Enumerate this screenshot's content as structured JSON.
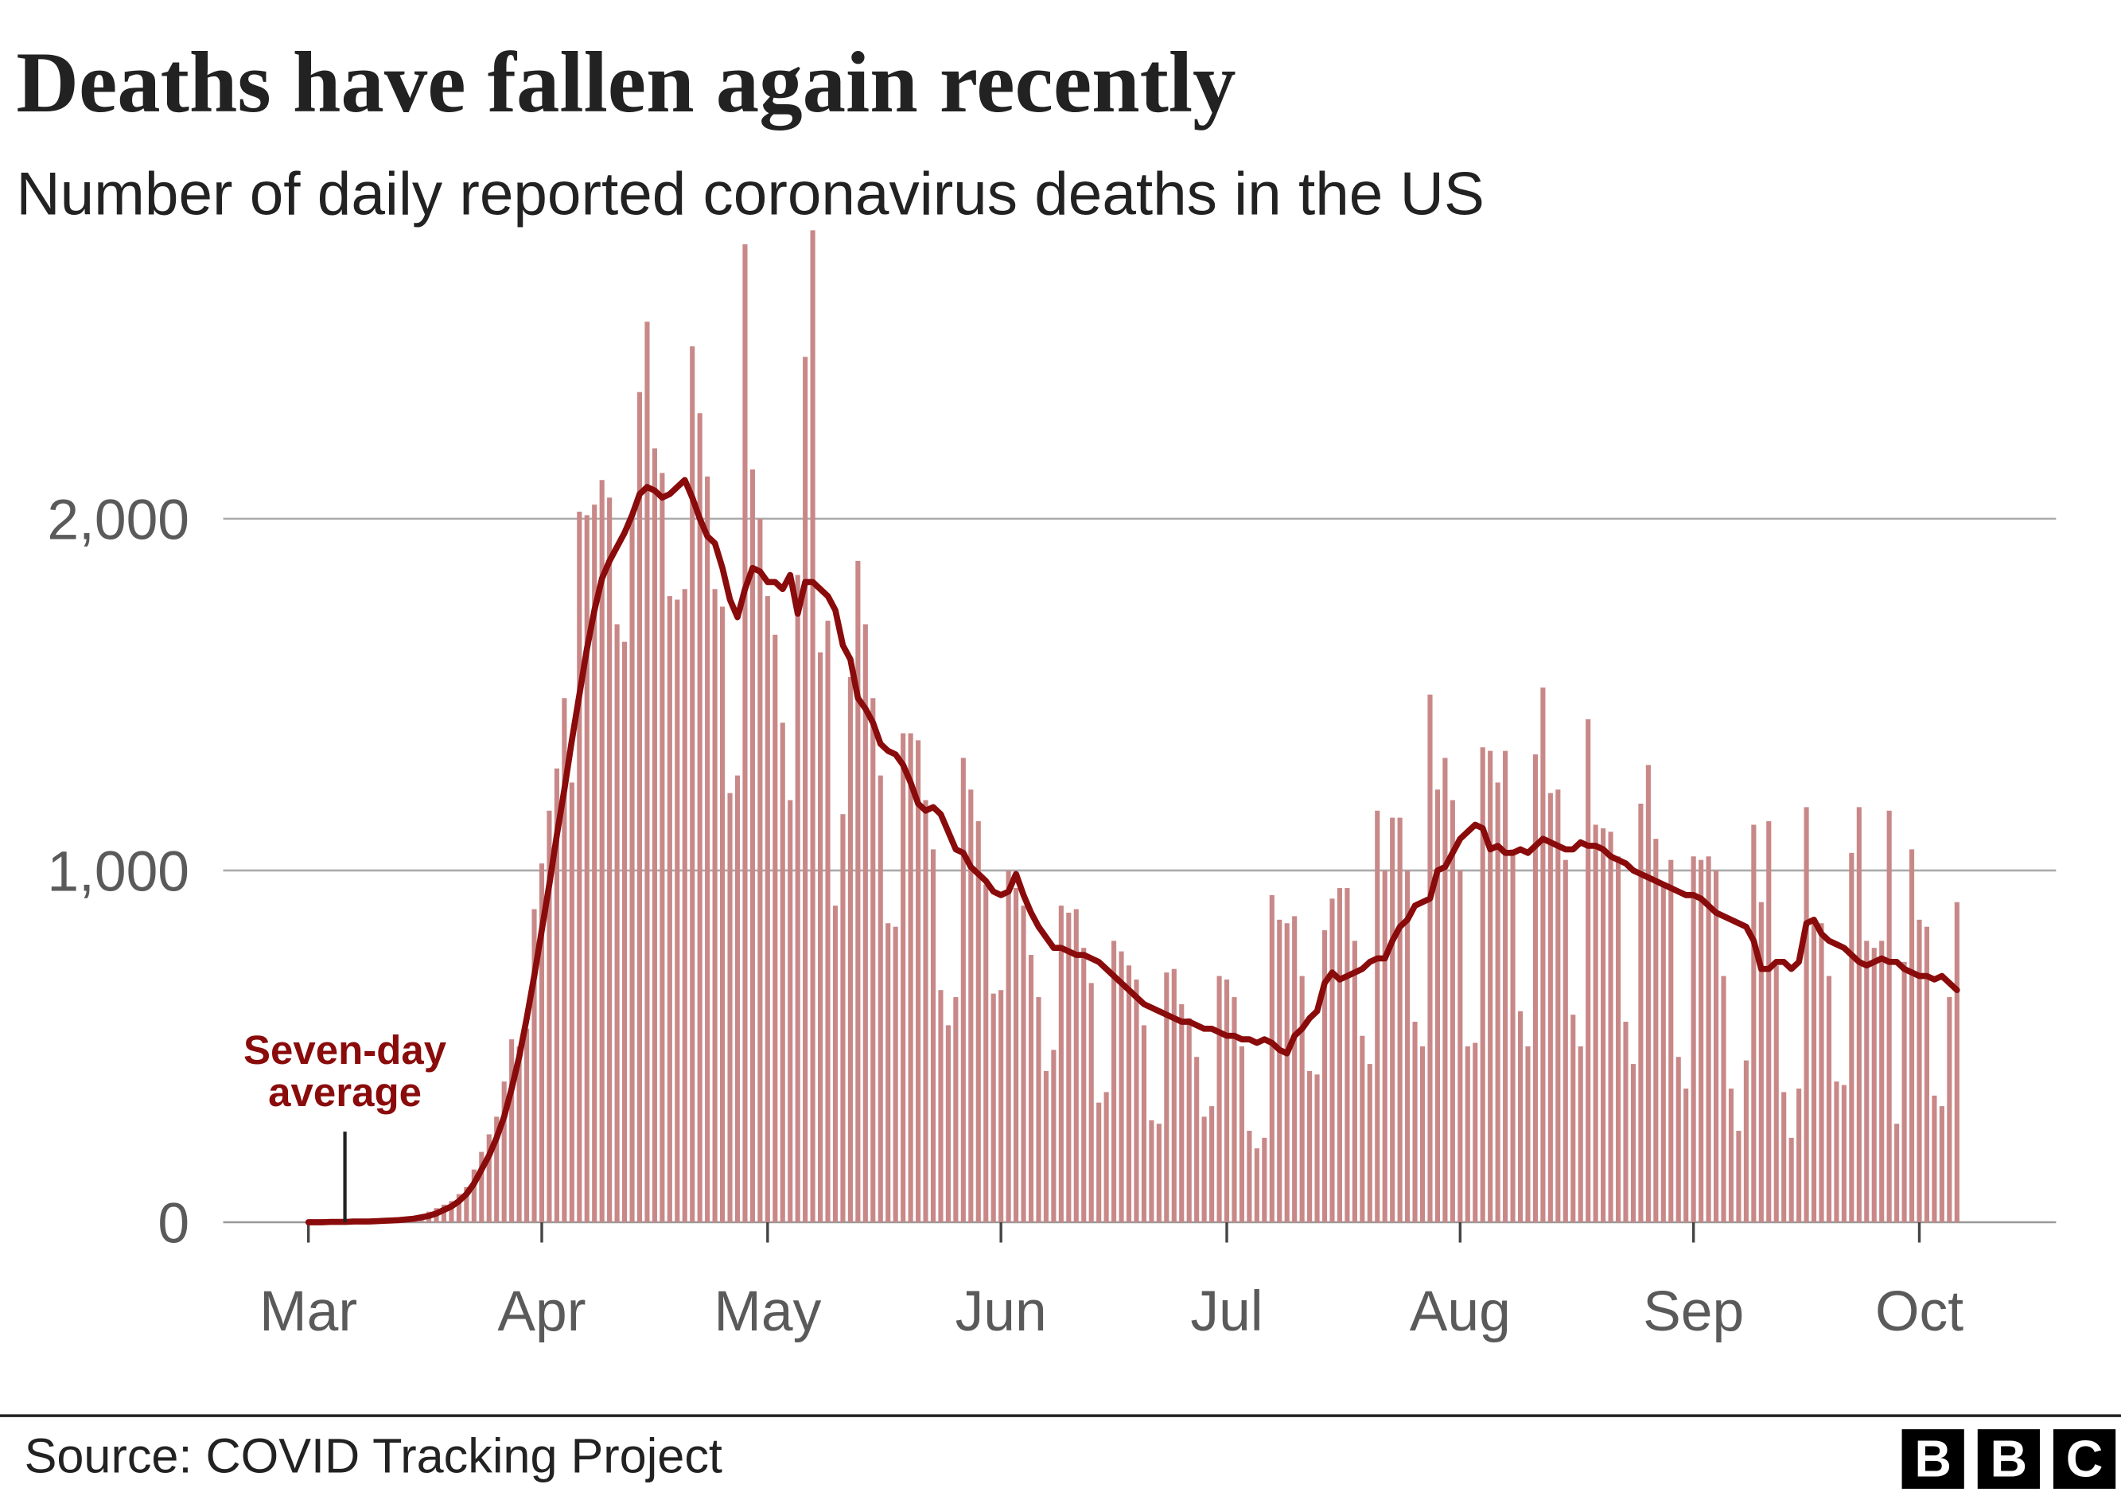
{
  "chart_data": {
    "type": "bar-line",
    "title": "Deaths have fallen again recently",
    "subtitle": "Number of daily reported coronavirus deaths in the US",
    "source": "Source: COVID Tracking Project",
    "logo": [
      "B",
      "B",
      "C"
    ],
    "annotation": [
      "Seven-day",
      "average"
    ],
    "categories": [
      "Mar",
      null,
      null,
      null,
      null,
      null,
      null,
      null,
      null,
      null,
      null,
      null,
      null,
      null,
      null,
      null,
      null,
      null,
      null,
      null,
      null,
      null,
      null,
      null,
      null,
      null,
      null,
      null,
      null,
      null,
      null,
      "Apr",
      null,
      null,
      null,
      null,
      null,
      null,
      null,
      null,
      null,
      null,
      null,
      null,
      null,
      null,
      null,
      null,
      null,
      null,
      null,
      null,
      null,
      null,
      null,
      null,
      null,
      null,
      null,
      null,
      null,
      "May",
      null,
      null,
      null,
      null,
      null,
      null,
      null,
      null,
      null,
      null,
      null,
      null,
      null,
      null,
      null,
      null,
      null,
      null,
      null,
      null,
      null,
      null,
      null,
      null,
      null,
      null,
      null,
      null,
      null,
      null,
      "Jun",
      null,
      null,
      null,
      null,
      null,
      null,
      null,
      null,
      null,
      null,
      null,
      null,
      null,
      null,
      null,
      null,
      null,
      null,
      null,
      null,
      null,
      null,
      null,
      null,
      null,
      null,
      null,
      null,
      null,
      "Jul",
      null,
      null,
      null,
      null,
      null,
      null,
      null,
      null,
      null,
      null,
      null,
      null,
      null,
      null,
      null,
      null,
      null,
      null,
      null,
      null,
      null,
      null,
      null,
      null,
      null,
      null,
      null,
      null,
      null,
      null,
      "Aug",
      null,
      null,
      null,
      null,
      null,
      null,
      null,
      null,
      null,
      null,
      null,
      null,
      null,
      null,
      null,
      null,
      null,
      null,
      null,
      null,
      null,
      null,
      null,
      null,
      null,
      null,
      null,
      null,
      null,
      null,
      "Sep",
      null,
      null,
      null,
      null,
      null,
      null,
      null,
      null,
      null,
      null,
      null,
      null,
      null,
      null,
      null,
      null,
      null,
      null,
      null,
      null,
      null,
      null,
      null,
      null,
      null,
      null,
      null,
      null,
      null,
      "Oct",
      null,
      null,
      null,
      null,
      null
    ],
    "series": [
      {
        "type": "bar",
        "color": "#c98888",
        "values": [
          0,
          1,
          1,
          2,
          2,
          2,
          2,
          3,
          4,
          5,
          6,
          8,
          10,
          12,
          15,
          20,
          30,
          40,
          50,
          60,
          80,
          100,
          150,
          200,
          250,
          300,
          400,
          520,
          500,
          550,
          890,
          1020,
          1170,
          1290,
          1490,
          1250,
          2020,
          2010,
          2040,
          2110,
          2060,
          1700,
          1650,
          2000,
          2360,
          2560,
          2200,
          2130,
          1780,
          1770,
          1800,
          2490,
          2300,
          2120,
          1800,
          1750,
          1220,
          1270,
          2780,
          2140,
          2000,
          1780,
          1670,
          1420,
          1200,
          1840,
          2460,
          2820,
          1620,
          1710,
          900,
          1160,
          1550,
          1880,
          1700,
          1490,
          1270,
          850,
          840,
          1390,
          1390,
          1370,
          1200,
          1060,
          660,
          560,
          640,
          1320,
          1230,
          1140,
          960,
          650,
          660,
          1000,
          950,
          900,
          760,
          640,
          430,
          490,
          900,
          880,
          890,
          780,
          680,
          340,
          370,
          800,
          770,
          730,
          690,
          560,
          290,
          280,
          710,
          720,
          620,
          580,
          470,
          300,
          330,
          700,
          690,
          640,
          500,
          260,
          210,
          240,
          930,
          860,
          850,
          870,
          700,
          430,
          420,
          830,
          920,
          950,
          950,
          800,
          530,
          450,
          1170,
          1000,
          1150,
          1150,
          1000,
          570,
          500,
          1500,
          1230,
          1320,
          1200,
          1000,
          500,
          510,
          1350,
          1340,
          1250,
          1340,
          1060,
          600,
          500,
          1330,
          1520,
          1220,
          1230,
          1030,
          590,
          500,
          1430,
          1130,
          1120,
          1110,
          1040,
          570,
          450,
          1190,
          1300,
          1090,
          960,
          1030,
          470,
          380,
          1040,
          1030,
          1040,
          1000,
          700,
          380,
          260,
          460,
          1130,
          910,
          1140,
          730,
          370,
          240,
          380,
          1180,
          860,
          850,
          700,
          400,
          390,
          1050,
          1180,
          800,
          780,
          800,
          1170,
          280,
          740,
          1060,
          860,
          840,
          360,
          330,
          640,
          910
        ]
      },
      {
        "type": "line",
        "name": "Seven-day average",
        "color": "#8a0b0b",
        "values": [
          0,
          0,
          0,
          1,
          1,
          1,
          2,
          2,
          2,
          3,
          4,
          5,
          6,
          8,
          10,
          14,
          18,
          25,
          35,
          45,
          60,
          80,
          110,
          150,
          190,
          240,
          300,
          380,
          470,
          580,
          700,
          830,
          960,
          1100,
          1230,
          1370,
          1500,
          1630,
          1740,
          1830,
          1880,
          1920,
          1960,
          2010,
          2070,
          2090,
          2080,
          2060,
          2070,
          2090,
          2110,
          2060,
          2000,
          1950,
          1930,
          1860,
          1770,
          1720,
          1800,
          1860,
          1850,
          1820,
          1820,
          1800,
          1840,
          1730,
          1820,
          1820,
          1800,
          1780,
          1740,
          1640,
          1600,
          1490,
          1460,
          1420,
          1360,
          1340,
          1330,
          1300,
          1250,
          1190,
          1170,
          1180,
          1160,
          1110,
          1060,
          1050,
          1010,
          990,
          970,
          940,
          930,
          940,
          990,
          930,
          880,
          840,
          810,
          780,
          780,
          770,
          760,
          760,
          750,
          740,
          720,
          700,
          680,
          660,
          640,
          620,
          610,
          600,
          590,
          580,
          570,
          570,
          560,
          550,
          550,
          540,
          530,
          530,
          520,
          520,
          510,
          520,
          510,
          490,
          480,
          530,
          550,
          580,
          600,
          680,
          710,
          690,
          700,
          710,
          720,
          740,
          750,
          750,
          800,
          840,
          860,
          900,
          910,
          920,
          1000,
          1010,
          1050,
          1090,
          1110,
          1130,
          1120,
          1060,
          1070,
          1050,
          1050,
          1060,
          1050,
          1070,
          1090,
          1080,
          1070,
          1060,
          1060,
          1080,
          1070,
          1070,
          1060,
          1040,
          1030,
          1020,
          1000,
          990,
          980,
          970,
          960,
          950,
          940,
          930,
          930,
          920,
          900,
          880,
          870,
          860,
          850,
          840,
          800,
          720,
          720,
          740,
          740,
          720,
          740,
          850,
          860,
          820,
          800,
          790,
          780,
          760,
          740,
          730,
          740,
          750,
          740,
          740,
          720,
          710,
          700,
          700,
          690,
          700,
          680,
          660
        ]
      }
    ],
    "ylim": [
      0,
      2800
    ],
    "yticks": [
      0,
      {
        "value": 1000,
        "label": "1,000"
      },
      {
        "value": 2000,
        "label": "2,000"
      }
    ],
    "grid": true
  }
}
